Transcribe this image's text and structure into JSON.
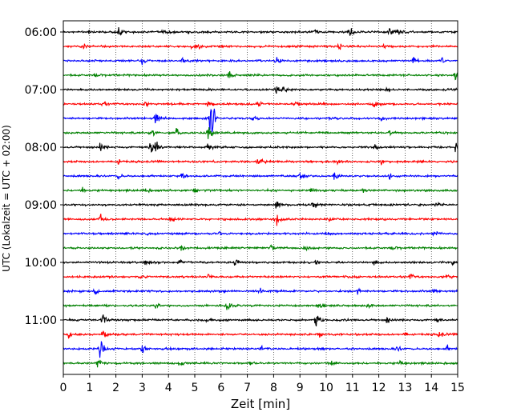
{
  "chart_data": {
    "type": "line",
    "title": "",
    "xlabel": "Zeit  [min]",
    "ylabel": "UTC (Lokalzeit = UTC + 02:00)",
    "xlim": [
      0,
      15
    ],
    "x_ticks": [
      0,
      1,
      2,
      3,
      4,
      5,
      6,
      7,
      8,
      9,
      10,
      11,
      12,
      13,
      14,
      15
    ],
    "y_ticks": [
      {
        "label": "06:00",
        "row": 0
      },
      {
        "label": "07:00",
        "row": 4
      },
      {
        "label": "08:00",
        "row": 8
      },
      {
        "label": "09:00",
        "row": 12
      },
      {
        "label": "10:00",
        "row": 16
      },
      {
        "label": "11:00",
        "row": 20
      }
    ],
    "grid": "vertical dotted at each minute",
    "row_colors": [
      "#000000",
      "#ff0000",
      "#0000ff",
      "#008000"
    ],
    "traces": [
      {
        "start": "06:00",
        "color": "#000000",
        "events": [
          [
            1.0,
            0.35
          ],
          [
            2.1,
            0.4
          ],
          [
            3.8,
            0.35
          ],
          [
            9.5,
            0.4
          ],
          [
            10.9,
            0.6
          ],
          [
            12.4,
            0.55
          ],
          [
            12.7,
            0.5
          ]
        ]
      },
      {
        "start": "06:15",
        "color": "#ff0000",
        "events": [
          [
            0.8,
            0.3
          ],
          [
            4.9,
            0.35
          ],
          [
            5.1,
            0.35
          ],
          [
            10.5,
            0.4
          ],
          [
            12.2,
            0.3
          ]
        ]
      },
      {
        "start": "06:30",
        "color": "#0000ff",
        "events": [
          [
            3.0,
            0.4
          ],
          [
            4.5,
            0.3
          ],
          [
            8.1,
            0.35
          ],
          [
            13.3,
            0.4
          ],
          [
            14.4,
            0.35
          ]
        ]
      },
      {
        "start": "06:45",
        "color": "#008000",
        "events": [
          [
            1.2,
            0.3
          ],
          [
            6.3,
            0.45
          ],
          [
            14.9,
            0.6
          ]
        ]
      },
      {
        "start": "07:00",
        "color": "#000000",
        "events": [
          [
            8.1,
            0.55
          ],
          [
            8.4,
            0.35
          ],
          [
            12.3,
            0.3
          ]
        ]
      },
      {
        "start": "07:15",
        "color": "#ff0000",
        "events": [
          [
            1.5,
            0.3
          ],
          [
            3.1,
            0.3
          ],
          [
            5.5,
            0.35
          ],
          [
            7.4,
            0.35
          ],
          [
            8.8,
            0.3
          ],
          [
            11.8,
            0.4
          ]
        ]
      },
      {
        "start": "07:30",
        "color": "#0000ff",
        "events": [
          [
            3.5,
            1.0
          ],
          [
            5.6,
            4.0
          ],
          [
            7.2,
            0.35
          ],
          [
            12.1,
            0.3
          ]
        ]
      },
      {
        "start": "07:45",
        "color": "#008000",
        "events": [
          [
            3.3,
            0.9
          ],
          [
            5.5,
            1.1
          ],
          [
            4.3,
            0.4
          ],
          [
            12.4,
            0.3
          ]
        ]
      },
      {
        "start": "08:00",
        "color": "#000000",
        "events": [
          [
            1.4,
            0.5
          ],
          [
            3.3,
            1.2
          ],
          [
            3.5,
            0.9
          ],
          [
            5.5,
            0.5
          ],
          [
            11.8,
            0.5
          ],
          [
            14.9,
            0.4
          ]
        ]
      },
      {
        "start": "08:15",
        "color": "#ff0000",
        "events": [
          [
            2.1,
            0.3
          ],
          [
            7.4,
            0.6
          ],
          [
            10.4,
            0.3
          ],
          [
            12.1,
            0.35
          ]
        ]
      },
      {
        "start": "08:30",
        "color": "#0000ff",
        "events": [
          [
            2.1,
            0.35
          ],
          [
            4.5,
            0.45
          ],
          [
            9.0,
            0.4
          ],
          [
            10.3,
            0.6
          ],
          [
            12.4,
            0.35
          ]
        ]
      },
      {
        "start": "08:45",
        "color": "#008000",
        "events": [
          [
            0.7,
            0.35
          ],
          [
            3.1,
            0.3
          ],
          [
            5.0,
            0.45
          ],
          [
            9.4,
            0.3
          ],
          [
            11.4,
            0.35
          ]
        ]
      },
      {
        "start": "09:00",
        "color": "#000000",
        "events": [
          [
            8.1,
            0.6
          ],
          [
            9.5,
            0.4
          ],
          [
            14.2,
            0.4
          ]
        ]
      },
      {
        "start": "09:15",
        "color": "#ff0000",
        "events": [
          [
            1.4,
            0.6
          ],
          [
            4.1,
            0.35
          ],
          [
            8.1,
            0.8
          ],
          [
            10.1,
            0.35
          ]
        ]
      },
      {
        "start": "09:30",
        "color": "#0000ff",
        "events": [
          [
            3.2,
            0.35
          ],
          [
            5.9,
            0.35
          ],
          [
            10.0,
            0.3
          ],
          [
            14.1,
            0.3
          ]
        ]
      },
      {
        "start": "09:45",
        "color": "#008000",
        "events": [
          [
            4.5,
            0.3
          ],
          [
            7.9,
            0.35
          ],
          [
            9.2,
            0.45
          ],
          [
            12.5,
            0.3
          ]
        ]
      },
      {
        "start": "10:00",
        "color": "#000000",
        "events": [
          [
            3.1,
            0.35
          ],
          [
            4.4,
            0.35
          ],
          [
            6.5,
            0.5
          ],
          [
            9.6,
            0.35
          ],
          [
            11.8,
            0.35
          ],
          [
            14.8,
            0.4
          ]
        ]
      },
      {
        "start": "10:15",
        "color": "#ff0000",
        "events": [
          [
            2.9,
            0.3
          ],
          [
            5.5,
            0.35
          ],
          [
            13.2,
            0.3
          ],
          [
            14.6,
            0.4
          ]
        ]
      },
      {
        "start": "10:30",
        "color": "#0000ff",
        "events": [
          [
            1.2,
            0.45
          ],
          [
            7.5,
            0.5
          ],
          [
            11.2,
            0.35
          ],
          [
            14.1,
            0.3
          ]
        ]
      },
      {
        "start": "10:45",
        "color": "#008000",
        "events": [
          [
            3.5,
            0.3
          ],
          [
            6.2,
            0.5
          ],
          [
            9.7,
            0.45
          ],
          [
            11.6,
            0.3
          ]
        ]
      },
      {
        "start": "11:00",
        "color": "#000000",
        "events": [
          [
            1.5,
            0.7
          ],
          [
            5.5,
            0.35
          ],
          [
            9.6,
            1.3
          ],
          [
            12.3,
            0.35
          ],
          [
            14.2,
            0.3
          ]
        ]
      },
      {
        "start": "11:15",
        "color": "#ff0000",
        "events": [
          [
            0.2,
            0.4
          ],
          [
            1.5,
            0.6
          ],
          [
            9.7,
            0.45
          ],
          [
            13.0,
            0.35
          ],
          [
            14.3,
            0.55
          ]
        ]
      },
      {
        "start": "11:30",
        "color": "#0000ff",
        "events": [
          [
            1.4,
            1.3
          ],
          [
            3.0,
            0.5
          ],
          [
            7.5,
            0.35
          ],
          [
            12.7,
            0.35
          ],
          [
            14.6,
            0.35
          ]
        ]
      },
      {
        "start": "11:45",
        "color": "#008000",
        "events": [
          [
            1.3,
            0.7
          ],
          [
            4.4,
            0.4
          ],
          [
            7.1,
            0.3
          ],
          [
            10.2,
            0.35
          ],
          [
            12.8,
            0.3
          ]
        ]
      }
    ]
  }
}
